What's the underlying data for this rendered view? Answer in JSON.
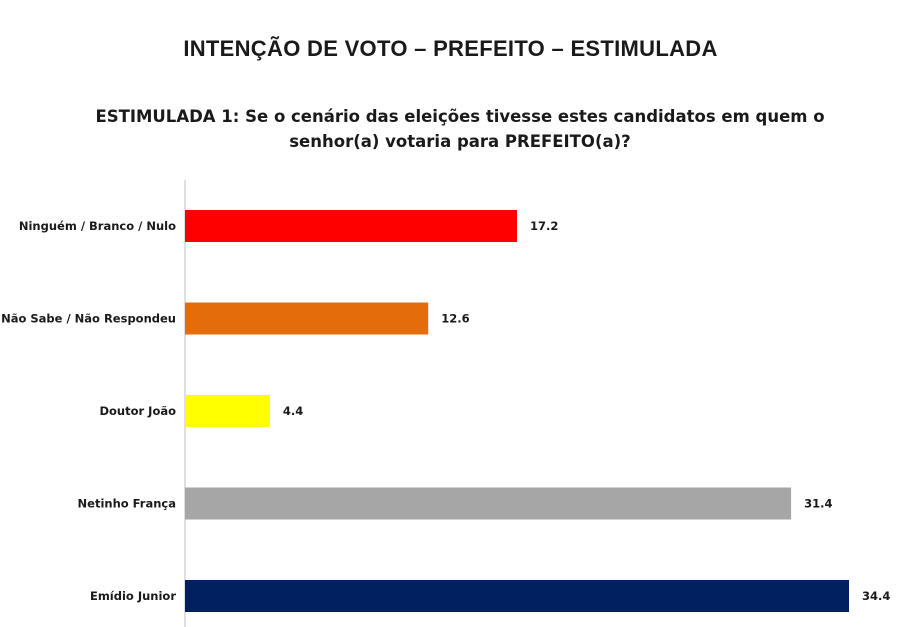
{
  "chart_data": {
    "type": "bar",
    "orientation": "horizontal",
    "title": "INTENÇÃO DE VOTO – PREFEITO – ESTIMULADA",
    "subtitle": "ESTIMULADA 1: Se o cenário das eleições tivesse estes candidatos em quem o senhor(a) votaria para PREFEITO(a)?",
    "categories": [
      "Ninguém / Branco / Nulo",
      "Não Sabe / Não Respondeu",
      "Doutor João",
      "Netinho França",
      "Emídio Junior"
    ],
    "values": [
      17.2,
      12.6,
      4.4,
      31.4,
      34.4
    ],
    "value_labels": [
      "17.2",
      "12.6",
      "4.4",
      "31.4",
      "34.4"
    ],
    "colors": [
      "#ff0000",
      "#e46c0a",
      "#ffff00",
      "#a6a6a6",
      "#002060"
    ],
    "xlim": [
      0,
      34.4
    ],
    "grid": false,
    "legend": "none"
  }
}
